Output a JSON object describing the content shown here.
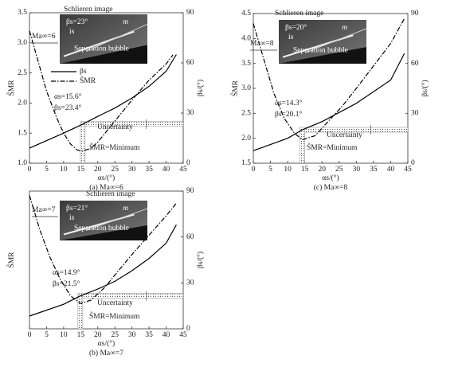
{
  "chart_data": [
    {
      "type": "line",
      "caption": "(a) Ma∞=6",
      "x_label": "αs/(°)",
      "y_label": "S̃MR",
      "y2_label": "βs/(°)",
      "xlim": [
        0,
        45
      ],
      "xticks": [
        0,
        5,
        10,
        15,
        20,
        25,
        30,
        35,
        40,
        45
      ],
      "ylim": [
        1.0,
        3.5
      ],
      "yticks": [
        {
          "value": 1.0,
          "label": "1.0"
        },
        1.5,
        {
          "value": 2.0,
          "label": "2.0"
        },
        2.5,
        {
          "value": 3.0,
          "label": "3.0"
        },
        3.5
      ],
      "y2lim": [
        0,
        90
      ],
      "y2ticks": [
        0,
        30,
        60,
        90
      ],
      "series": [
        {
          "name": "βs",
          "color": "#000000",
          "dash": "solid",
          "axis": "y2",
          "x": [
            0,
            10,
            15.6,
            20,
            25,
            30,
            35,
            40,
            43
          ],
          "values": [
            9,
            18,
            23.4,
            28,
            33,
            39,
            46,
            55,
            65
          ]
        },
        {
          "name": "S̃MR",
          "color": "#000000",
          "dash": "dashdot",
          "x": [
            0,
            2,
            5,
            8,
            10,
            12,
            14,
            15.6,
            18,
            20,
            25,
            30,
            35,
            40,
            42
          ],
          "values": [
            3.2,
            2.8,
            2.2,
            1.75,
            1.5,
            1.32,
            1.22,
            1.2,
            1.25,
            1.35,
            1.7,
            2.05,
            2.38,
            2.65,
            2.8
          ]
        }
      ],
      "optimum": {
        "x": 15.6,
        "y2": 23.4
      },
      "annotations": {
        "inset_title": "Schlieren image",
        "mach": "Ma∞=6",
        "shock": "βs=23°",
        "m": "m",
        "is": "is",
        "bubble": "Separation bubble",
        "opt_alpha": "αs=15.6°",
        "opt_beta": "βs=23.4°",
        "uncertainty": "Uncertainty",
        "minimum": "S̃MR=Minimum"
      }
    },
    {
      "type": "line",
      "caption": "(c) Ma∞=8",
      "x_label": "αs/(°)",
      "y_label": "S̃MR",
      "y2_label": "βs/(°)",
      "xlim": [
        0,
        45
      ],
      "xticks": [
        0,
        5,
        10,
        15,
        20,
        25,
        30,
        35,
        40,
        45
      ],
      "ylim": [
        1.5,
        4.5
      ],
      "yticks": [
        1.5,
        {
          "value": 2.0,
          "label": "2.0"
        },
        2.5,
        {
          "value": 3.0,
          "label": "3.0"
        },
        3.5,
        {
          "value": 4.0,
          "label": "4.0"
        },
        4.5
      ],
      "y2lim": [
        0,
        90
      ],
      "y2ticks": [
        0,
        30,
        60,
        90
      ],
      "series": [
        {
          "color": "#000000",
          "dash": "solid",
          "axis": "y2",
          "x": [
            0,
            10,
            14.3,
            20,
            30,
            40,
            44
          ],
          "values": [
            7.5,
            15,
            20.1,
            25,
            36,
            50,
            66
          ]
        },
        {
          "color": "#000000",
          "dash": "dashdot",
          "x": [
            0,
            3,
            6,
            9,
            12,
            14.3,
            18,
            22,
            26,
            30,
            35,
            40,
            44
          ],
          "values": [
            4.3,
            3.6,
            2.9,
            2.4,
            2.1,
            1.97,
            2.05,
            2.35,
            2.65,
            3.0,
            3.45,
            3.9,
            4.4
          ]
        }
      ],
      "optimum": {
        "x": 14.3,
        "y2": 20.1
      },
      "annotations": {
        "inset_title": "Schlieren image",
        "mach": "Ma∞=8",
        "shock": "βs=20°",
        "m": "m",
        "is": "is",
        "bubble": "Separation bubble",
        "opt_alpha": "αs=14.3°",
        "opt_beta": "βs=20.1°",
        "uncertainty": "Uncertainty",
        "minimum": "S̃MR=Minimum"
      }
    },
    {
      "type": "line",
      "caption": "(b) Ma∞=7",
      "x_label": "αs/(°)",
      "y_label": "S̃MR",
      "y2_label": "βs/(°)",
      "xlim": [
        0,
        45
      ],
      "xticks": [
        0,
        5,
        10,
        15,
        20,
        25,
        30,
        35,
        40,
        45
      ],
      "ylim": [
        1.0,
        3.5
      ],
      "y2lim": [
        0,
        90
      ],
      "y2ticks": [
        0,
        30,
        60,
        90
      ],
      "series": [
        {
          "color": "#000000",
          "dash": "solid",
          "axis": "y2",
          "x": [
            0,
            10,
            14.9,
            20,
            25,
            30,
            35,
            40,
            43
          ],
          "values": [
            8.3,
            16,
            21.5,
            26,
            31,
            38,
            46,
            56,
            68
          ]
        },
        {
          "color": "#000000",
          "dash": "dashdot",
          "x": [
            0,
            3,
            6,
            9,
            12,
            14.9,
            18,
            22,
            26,
            30,
            35,
            40,
            43
          ],
          "values": [
            3.42,
            2.8,
            2.3,
            1.9,
            1.6,
            1.46,
            1.52,
            1.75,
            2.05,
            2.35,
            2.7,
            3.05,
            3.28
          ]
        }
      ],
      "optimum": {
        "x": 14.9,
        "y2": 21.5
      },
      "annotations": {
        "inset_title": "Schlieren image",
        "mach": "Ma∞=7",
        "shock": "βs=21°",
        "m": "m",
        "is": "is",
        "bubble": "Separation bubble",
        "opt_alpha": "αs=14.9°",
        "opt_beta": "βs=21.5°",
        "uncertainty": "Uncertainty",
        "minimum": "S̃MR=Minimum"
      }
    }
  ]
}
